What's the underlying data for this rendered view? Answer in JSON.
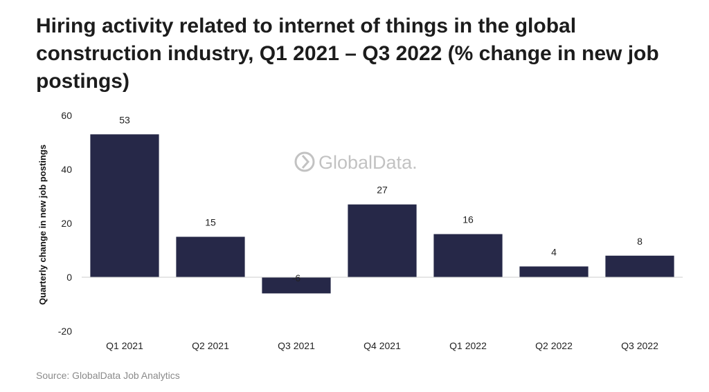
{
  "title": "Hiring activity related to internet of things in the global construction industry, Q1 2021 – Q3 2022 (% change in new job postings)",
  "source": "Source: GlobalData Job Analytics",
  "watermark": "GlobalData.",
  "colors": {
    "bar": "#262848",
    "axis": "#cccccc",
    "watermark": "#c2c2c2"
  },
  "chart_data": {
    "type": "bar",
    "ylabel": "Quarterly change in new job postings",
    "xlabel": "",
    "categories": [
      "Q1 2021",
      "Q2 2021",
      "Q3 2021",
      "Q4 2021",
      "Q1 2022",
      "Q2 2022",
      "Q3 2022"
    ],
    "values": [
      53,
      15,
      -6,
      27,
      16,
      4,
      8
    ],
    "data_labels": [
      "53",
      "15",
      "-6",
      "27",
      "16",
      "4",
      "8"
    ],
    "yticks": [
      60,
      40,
      20,
      0,
      -20
    ],
    "ylim": [
      -20,
      60
    ],
    "grid": false,
    "legend": "none"
  }
}
